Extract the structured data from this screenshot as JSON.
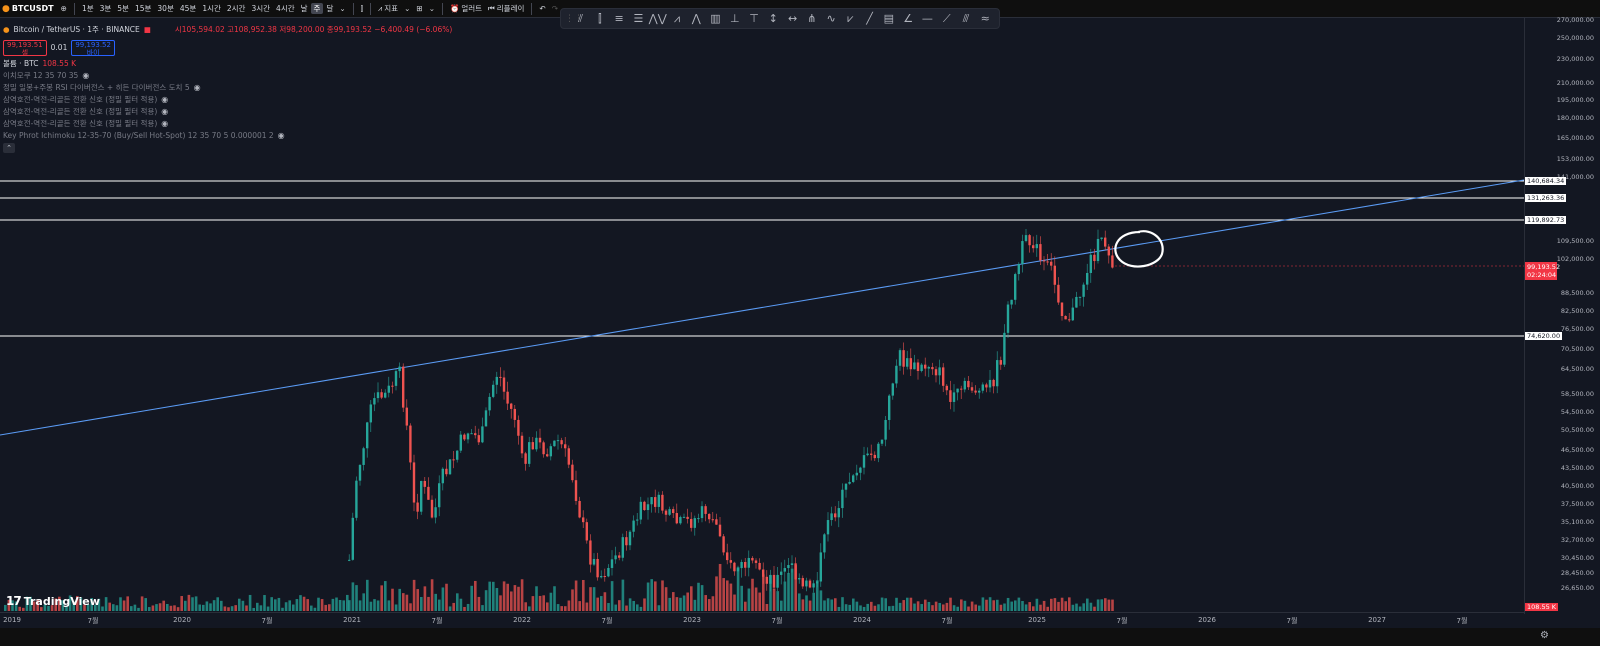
{
  "toolbar": {
    "symbol": "BTCUSDT",
    "intervals": [
      "1분",
      "3분",
      "5분",
      "15분",
      "30분",
      "45분",
      "1시간",
      "2시간",
      "3시간",
      "4시간",
      "날",
      "주",
      "달"
    ],
    "active_interval": "주",
    "indicators_label": "지표",
    "alert_label": "얼러트",
    "replay_label": "리플레이"
  },
  "legend": {
    "title": "Bitcoin / TetherUS · 1주 · BINANCE",
    "ohlc": "시105,594.02 고108,952.38 저98,200.00 종99,193.52 −6,400.49 (−6.06%)",
    "sell_price": "99,193.51",
    "sell_label": "셀",
    "spread": "0.01",
    "buy_price": "99,193.52",
    "buy_label": "바이",
    "volume": "볼륨 · BTC",
    "volume_value": "108.55 K",
    "indicators": [
      "이치모쿠 12 35 70 35",
      "정밀 일봉+주봉 RSI 다이버전스 + 히든 다이버전스 도치 5",
      "삼역호전-역전-리골든 전환 신호 (정밀 필터 적용)",
      "삼역호전-역전-리골든 전환 신호 (정밀 필터 적용)",
      "삼역호전-역전-리골든 전환 신호 (정밀 필터 적용)",
      "Key Phrot Ichimoku 12-35-70 (Buy/Sell Hot-Spot) 12 35 70 5 0.000001 2"
    ]
  },
  "price_axis": {
    "ticks": [
      "270,000.00",
      "250,000.00",
      "230,000.00",
      "210,000.00",
      "195,000.00",
      "180,000.00",
      "165,000.00",
      "153,000.00",
      "141,000.00",
      "109,500.00",
      "102,000.00",
      "88,500.00",
      "82,500.00",
      "76,500.00",
      "70,500.00",
      "64,500.00",
      "58,500.00",
      "54,500.00",
      "50,500.00",
      "46,500.00",
      "43,500.00",
      "40,500.00",
      "37,500.00",
      "35,100.00",
      "32,700.00",
      "30,450.00",
      "28,450.00",
      "26,650.00"
    ],
    "horizontal_lines": [
      "140,684.34",
      "131,263.36",
      "119,892.73",
      "74,620.00"
    ],
    "current_price": "99,193.52",
    "countdown": "02:24:04",
    "volume_label": "108.55 K"
  },
  "time_axis": [
    "2019",
    "7월",
    "2020",
    "7월",
    "2021",
    "7월",
    "2022",
    "7월",
    "2023",
    "7월",
    "2024",
    "7월",
    "2025",
    "7월",
    "2026",
    "7월",
    "2027",
    "7월"
  ],
  "colors": {
    "up": "#26a69a",
    "down": "#ef5350",
    "trendline": "#5b9cf6",
    "hline": "#ffffff",
    "current": "#f23645"
  },
  "brand": "TradingView"
}
